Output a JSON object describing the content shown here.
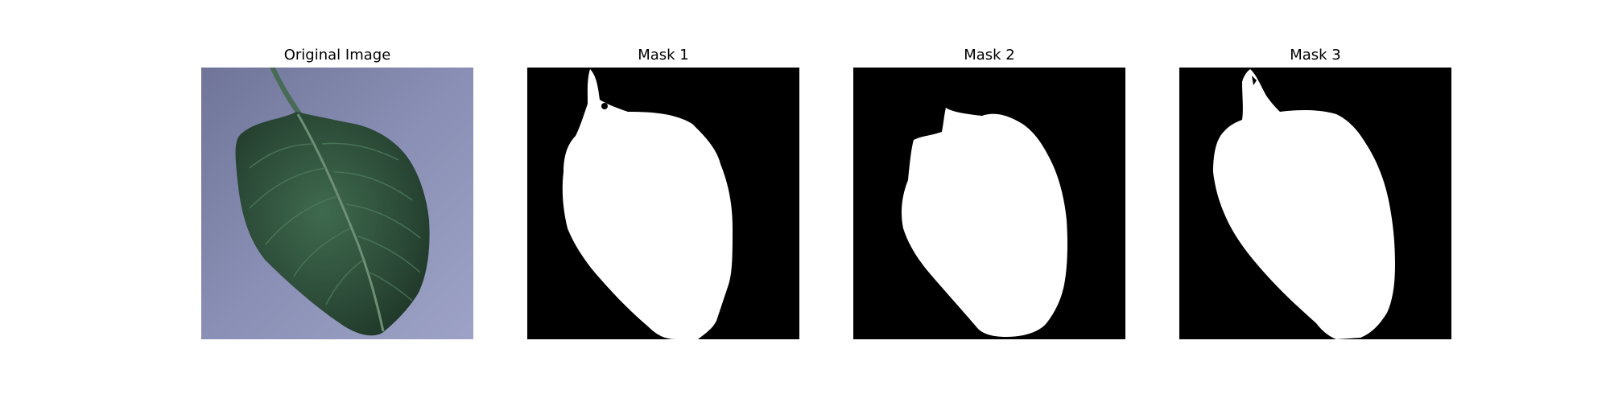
{
  "figure": {
    "panels": [
      {
        "title": "Original Image",
        "content": "leaf photo"
      },
      {
        "title": "Mask 1",
        "content": "binary mask"
      },
      {
        "title": "Mask 2",
        "content": "binary mask"
      },
      {
        "title": "Mask 3",
        "content": "binary mask"
      }
    ],
    "colors": {
      "background": "#ffffff",
      "mask_foreground": "#ffffff",
      "mask_background": "#000000",
      "photo_backdrop": "#8b90b6",
      "leaf_dark": "#25412f",
      "leaf_light": "#3f6a4f"
    }
  }
}
